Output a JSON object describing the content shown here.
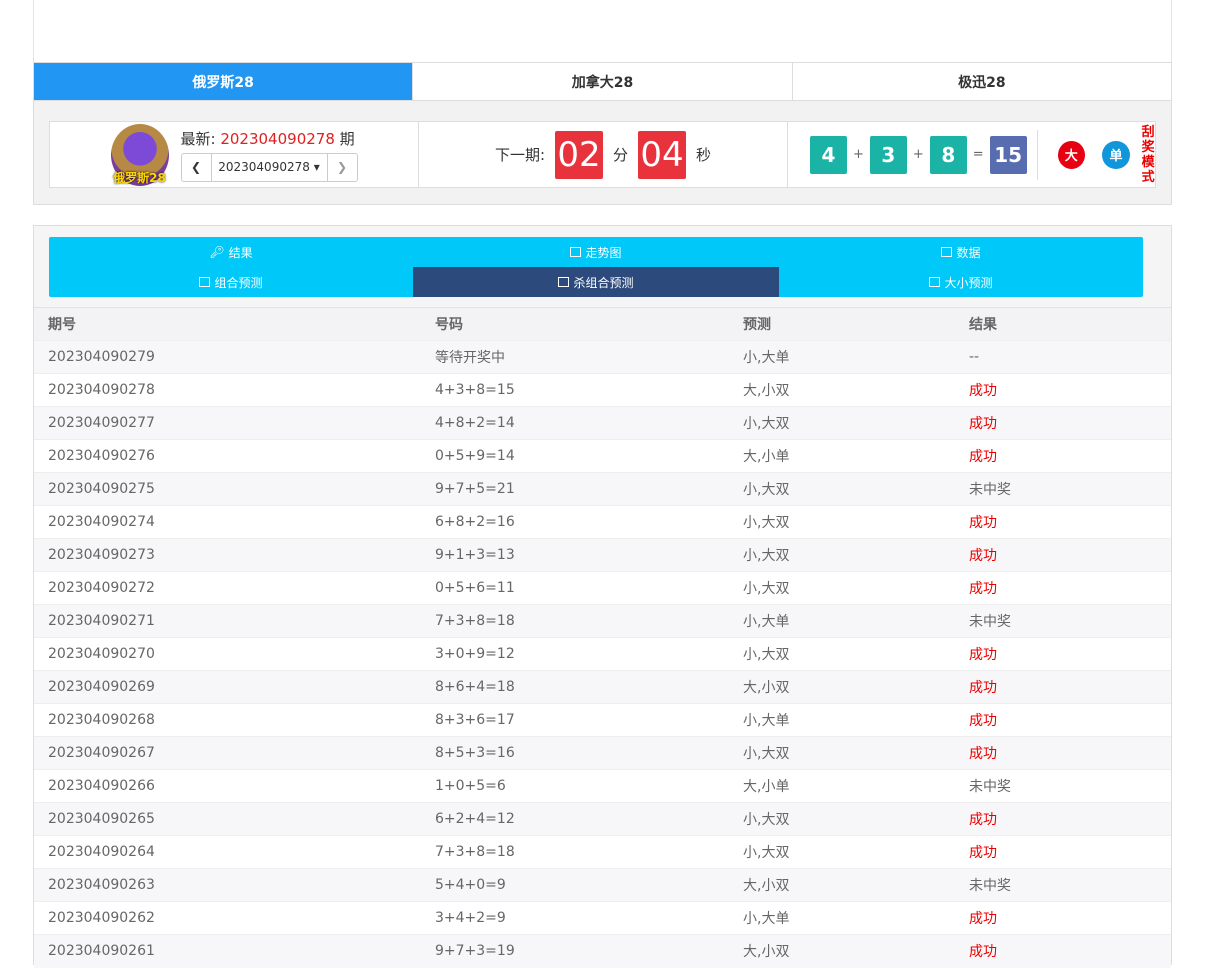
{
  "tabs": [
    "俄罗斯28",
    "加拿大28",
    "极迅28"
  ],
  "info": {
    "logo_text": "俄罗斯28",
    "latest_label": "最新:",
    "latest_num": "202304090278",
    "latest_suffix": "期",
    "period_select": "202304090278",
    "next_label": "下一期:",
    "minutes": "02",
    "min_unit": "分",
    "seconds": "04",
    "sec_unit": "秒",
    "balls": [
      "4",
      "3",
      "8"
    ],
    "plus": "+",
    "eq": "=",
    "sum": "15",
    "size": "大",
    "parity": "单",
    "size_color": "#e60012",
    "parity_color": "#1296db",
    "mode": [
      "刮",
      "奖",
      "模",
      "式"
    ]
  },
  "nav": [
    {
      "label": "结果",
      "icon": "key-icon"
    },
    {
      "label": "走势图",
      "icon": "chart-icon"
    },
    {
      "label": "数据",
      "icon": "chart-icon"
    },
    {
      "label": "组合预测",
      "icon": "chart-icon"
    },
    {
      "label": "杀组合预测",
      "icon": "chart-icon",
      "active": true
    },
    {
      "label": "大小预测",
      "icon": "chart-icon"
    }
  ],
  "table": {
    "headers": [
      "期号",
      "号码",
      "预测",
      "结果"
    ],
    "rows": [
      [
        "202304090279",
        "等待开奖中",
        "小,大单",
        "--"
      ],
      [
        "202304090278",
        "4+3+8=15",
        "大,小双",
        "成功"
      ],
      [
        "202304090277",
        "4+8+2=14",
        "小,大双",
        "成功"
      ],
      [
        "202304090276",
        "0+5+9=14",
        "大,小单",
        "成功"
      ],
      [
        "202304090275",
        "9+7+5=21",
        "小,大双",
        "未中奖"
      ],
      [
        "202304090274",
        "6+8+2=16",
        "小,大双",
        "成功"
      ],
      [
        "202304090273",
        "9+1+3=13",
        "小,大双",
        "成功"
      ],
      [
        "202304090272",
        "0+5+6=11",
        "小,大双",
        "成功"
      ],
      [
        "202304090271",
        "7+3+8=18",
        "小,大单",
        "未中奖"
      ],
      [
        "202304090270",
        "3+0+9=12",
        "小,大双",
        "成功"
      ],
      [
        "202304090269",
        "8+6+4=18",
        "大,小双",
        "成功"
      ],
      [
        "202304090268",
        "8+3+6=17",
        "小,大单",
        "成功"
      ],
      [
        "202304090267",
        "8+5+3=16",
        "小,大双",
        "成功"
      ],
      [
        "202304090266",
        "1+0+5=6",
        "大,小单",
        "未中奖"
      ],
      [
        "202304090265",
        "6+2+4=12",
        "小,大双",
        "成功"
      ],
      [
        "202304090264",
        "7+3+8=18",
        "小,大双",
        "成功"
      ],
      [
        "202304090263",
        "5+4+0=9",
        "大,小双",
        "未中奖"
      ],
      [
        "202304090262",
        "3+4+2=9",
        "小,大单",
        "成功"
      ],
      [
        "202304090261",
        "9+7+3=19",
        "大,小双",
        "成功"
      ]
    ]
  }
}
